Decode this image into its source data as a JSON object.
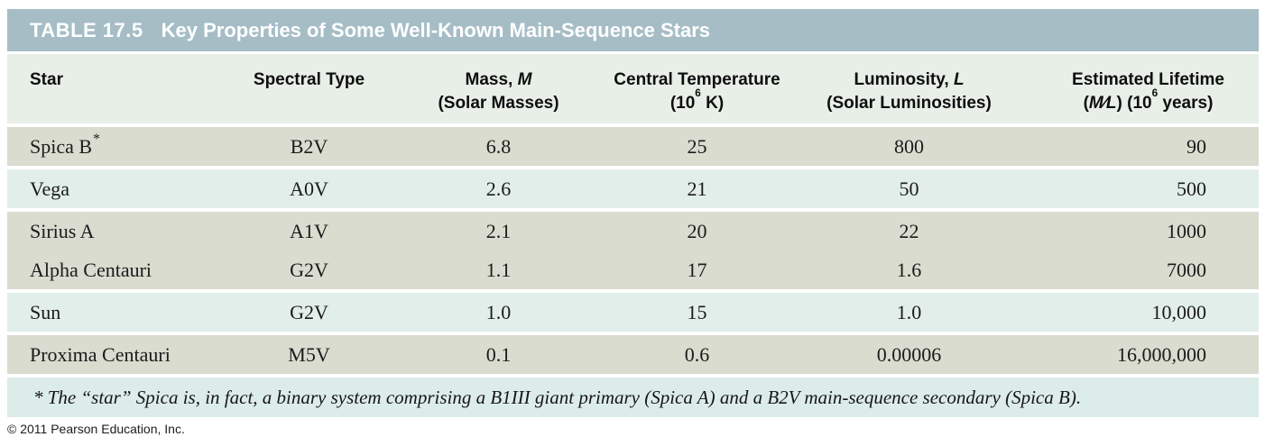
{
  "title_bar": {
    "label": "TABLE 17.5",
    "title": "Key Properties of Some Well-Known Main-Sequence Stars"
  },
  "colors": {
    "title_bg": "#a6bdc6",
    "header_bg": "#e7efe7",
    "row_gray": "#d9dccf",
    "row_light": "#e2eeea",
    "footnote_bg": "#dcece9",
    "page_bg": "#ffffff",
    "title_text": "#ffffff",
    "body_text": "#1b1b1b"
  },
  "table": {
    "columns": [
      {
        "id": "star",
        "line1": [
          {
            "t": "Star"
          }
        ],
        "line2": []
      },
      {
        "id": "spectral_type",
        "line1": [
          {
            "t": "Spectral Type"
          }
        ],
        "line2": []
      },
      {
        "id": "mass",
        "line1": [
          {
            "t": "Mass, "
          },
          {
            "t": "M",
            "i": true
          }
        ],
        "line2": [
          {
            "t": "(Solar Masses)"
          }
        ]
      },
      {
        "id": "central_temperature",
        "line1": [
          {
            "t": "Central Temperature"
          }
        ],
        "line2": [
          {
            "t": "(10"
          },
          {
            "t": "6",
            "sup": true
          },
          {
            "t": " K)"
          }
        ]
      },
      {
        "id": "luminosity",
        "line1": [
          {
            "t": "Luminosity, "
          },
          {
            "t": "L",
            "i": true
          }
        ],
        "line2": [
          {
            "t": "(Solar Luminosities)"
          }
        ]
      },
      {
        "id": "lifetime",
        "line1": [
          {
            "t": "Estimated Lifetime"
          }
        ],
        "line2": [
          {
            "t": "("
          },
          {
            "t": "M∕L",
            "i": true
          },
          {
            "t": ") (10"
          },
          {
            "t": "6",
            "sup": true
          },
          {
            "t": " years)"
          }
        ]
      }
    ],
    "rows": [
      {
        "star": "Spica B",
        "star_marker": "*",
        "spectral_type": "B2V",
        "mass": "6.8",
        "central_temperature": "25",
        "luminosity": "800",
        "lifetime": "90",
        "shade": "gray",
        "gap_above": true
      },
      {
        "star": "Vega",
        "star_marker": "",
        "spectral_type": "A0V",
        "mass": "2.6",
        "central_temperature": "21",
        "luminosity": "50",
        "lifetime": "500",
        "shade": "light",
        "gap_above": true
      },
      {
        "star": "Sirius A",
        "star_marker": "",
        "spectral_type": "A1V",
        "mass": "2.1",
        "central_temperature": "20",
        "luminosity": "22",
        "lifetime": "1000",
        "shade": "gray",
        "gap_above": true
      },
      {
        "star": "Alpha Centauri",
        "star_marker": "",
        "spectral_type": "G2V",
        "mass": "1.1",
        "central_temperature": "17",
        "luminosity": "1.6",
        "lifetime": "7000",
        "shade": "gray",
        "gap_above": false
      },
      {
        "star": "Sun",
        "star_marker": "",
        "spectral_type": "G2V",
        "mass": "1.0",
        "central_temperature": "15",
        "luminosity": "1.0",
        "lifetime": "10,000",
        "shade": "light",
        "gap_above": true
      },
      {
        "star": "Proxima Centauri",
        "star_marker": "",
        "spectral_type": "M5V",
        "mass": "0.1",
        "central_temperature": "0.6",
        "luminosity": "0.00006",
        "lifetime": "16,000,000",
        "shade": "gray",
        "gap_above": true
      }
    ],
    "footnote": "* The “star” Spica is, in fact, a binary system comprising a B1III giant primary (Spica A) and a B2V main-sequence secondary (Spica B)."
  },
  "copyright": "© 2011 Pearson Education, Inc."
}
